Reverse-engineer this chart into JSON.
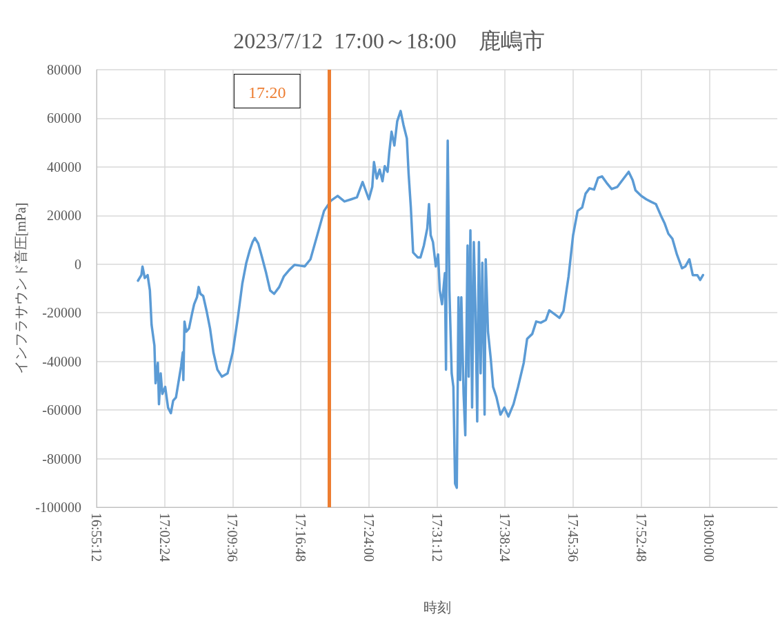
{
  "chart_data": {
    "type": "line",
    "title": "2023/7/12  17:00～18:00　鹿嶋市",
    "xlabel": "時刻",
    "ylabel": "インフラサウンド音圧[mPa]",
    "xlim": [
      16.92,
      18.12
    ],
    "xticks": [
      {
        "value": 16.92,
        "label": "16:55:12"
      },
      {
        "value": 17.04,
        "label": "17:02:24"
      },
      {
        "value": 17.16,
        "label": "17:09:36"
      },
      {
        "value": 17.28,
        "label": "17:16:48"
      },
      {
        "value": 17.4,
        "label": "17:24:00"
      },
      {
        "value": 17.52,
        "label": "17:31:12"
      },
      {
        "value": 17.64,
        "label": "17:38:24"
      },
      {
        "value": 17.76,
        "label": "17:45:36"
      },
      {
        "value": 17.88,
        "label": "17:52:48"
      },
      {
        "value": 18.0,
        "label": "18:00:00"
      }
    ],
    "ylim": [
      -100000,
      80000
    ],
    "yticks": [
      -100000,
      -80000,
      -60000,
      -40000,
      -20000,
      0,
      20000,
      40000,
      60000,
      80000
    ],
    "grid": true,
    "marker": "none",
    "line_style": "solid",
    "ref_lines": [
      {
        "axis": "x",
        "value": 17.3333,
        "label": "17:20",
        "color": "#ed7d31"
      }
    ],
    "series": [
      {
        "color": "#5b9bd5",
        "x": [
          16.993,
          16.999,
          17.001,
          17.005,
          17.01,
          17.014,
          17.017,
          17.022,
          17.024,
          17.028,
          17.03,
          17.033,
          17.036,
          17.041,
          17.046,
          17.051,
          17.055,
          17.06,
          17.066,
          17.069,
          17.072,
          17.073,
          17.075,
          17.078,
          17.083,
          17.088,
          17.092,
          17.097,
          17.1,
          17.103,
          17.108,
          17.114,
          17.12,
          17.126,
          17.133,
          17.141,
          17.151,
          17.16,
          17.169,
          17.177,
          17.184,
          17.19,
          17.195,
          17.199,
          17.205,
          17.211,
          17.219,
          17.226,
          17.233,
          17.242,
          17.25,
          17.26,
          17.269,
          17.278,
          17.287,
          17.297,
          17.309,
          17.321,
          17.333,
          17.345,
          17.357,
          17.369,
          17.379,
          17.389,
          17.4,
          17.406,
          17.409,
          17.414,
          17.419,
          17.424,
          17.428,
          17.433,
          17.436,
          17.44,
          17.445,
          17.45,
          17.456,
          17.461,
          17.467,
          17.47,
          17.474,
          17.478,
          17.486,
          17.491,
          17.497,
          17.503,
          17.506,
          17.509,
          17.513,
          17.518,
          17.522,
          17.525,
          17.529,
          17.534,
          17.536,
          17.537,
          17.539,
          17.542,
          17.546,
          17.549,
          17.552,
          17.555,
          17.558,
          17.561,
          17.563,
          17.567,
          17.57,
          17.574,
          17.576,
          17.579,
          17.582,
          17.585,
          17.588,
          17.591,
          17.594,
          17.597,
          17.6,
          17.604,
          17.606,
          17.61,
          17.615,
          17.619,
          17.625,
          17.632,
          17.639,
          17.646,
          17.655,
          17.663,
          17.673,
          17.679,
          17.688,
          17.695,
          17.703,
          17.712,
          17.718,
          17.728,
          17.736,
          17.743,
          17.752,
          17.76,
          17.768,
          17.776,
          17.782,
          17.789,
          17.797,
          17.804,
          17.811,
          17.819,
          17.828,
          17.838,
          17.849,
          17.858,
          17.865,
          17.87,
          17.88,
          17.889,
          17.898,
          17.906,
          17.914,
          17.921,
          17.928,
          17.935,
          17.943,
          17.952,
          17.958,
          17.965,
          17.971,
          17.979,
          17.984,
          17.989
        ],
        "values": [
          -6800,
          -4500,
          -1000,
          -5700,
          -4500,
          -10800,
          -25000,
          -33500,
          -49000,
          -40600,
          -57600,
          -44900,
          -53400,
          -50500,
          -59000,
          -61300,
          -56200,
          -54800,
          -46300,
          -42000,
          -36300,
          -47700,
          -23600,
          -27800,
          -26400,
          -20700,
          -16500,
          -13600,
          -9400,
          -12200,
          -13100,
          -19300,
          -26400,
          -36300,
          -43400,
          -46300,
          -44900,
          -36300,
          -22100,
          -7900,
          600,
          5700,
          9100,
          10800,
          8500,
          3400,
          -3700,
          -10800,
          -12200,
          -9400,
          -5100,
          -2300,
          -300,
          -600,
          -900,
          2000,
          11900,
          21900,
          26100,
          28100,
          25800,
          26700,
          27500,
          33800,
          26700,
          31800,
          42000,
          35200,
          38900,
          34100,
          40300,
          38000,
          46000,
          54500,
          48800,
          58800,
          63000,
          57300,
          51700,
          37500,
          23300,
          4800,
          2800,
          2800,
          7700,
          14800,
          24700,
          11900,
          9100,
          -900,
          4000,
          -10800,
          -16500,
          -3700,
          -43400,
          6200,
          50800,
          -10800,
          -44900,
          -50500,
          -90300,
          -92000,
          -13600,
          -47700,
          -13600,
          -53400,
          -70400,
          7700,
          -46300,
          13900,
          -59000,
          9100,
          -19300,
          -64700,
          9100,
          -44900,
          600,
          -61900,
          2000,
          -27800,
          -39200,
          -50500,
          -54800,
          -61900,
          -59000,
          -62700,
          -57600,
          -50500,
          -40600,
          -30700,
          -28700,
          -23600,
          -24100,
          -23000,
          -19000,
          -20700,
          -22100,
          -19300,
          -5100,
          11900,
          21900,
          23300,
          29000,
          31200,
          30700,
          35500,
          36100,
          33500,
          30900,
          31800,
          35200,
          38000,
          34600,
          30400,
          28100,
          26700,
          25600,
          24700,
          20400,
          17000,
          12500,
          10500,
          4000,
          -1700,
          -900,
          2000,
          -4500,
          -4500,
          -6500,
          -4500
        ]
      }
    ]
  }
}
